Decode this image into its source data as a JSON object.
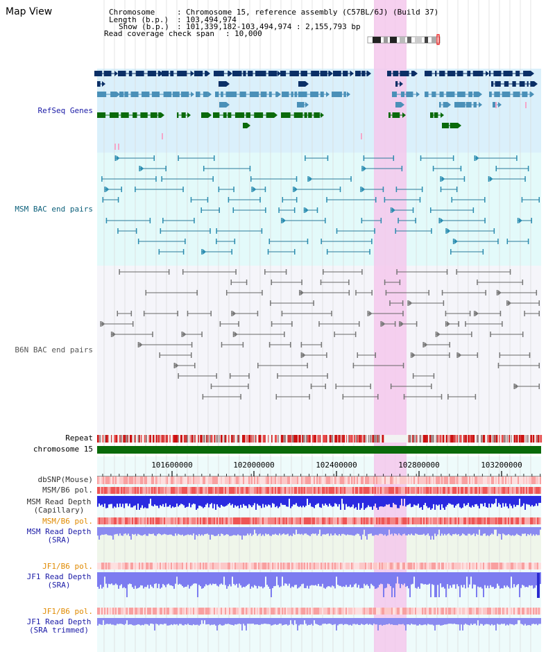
{
  "view": {
    "title": "Map View"
  },
  "header": {
    "chromosome_key": "Chromosome",
    "chromosome_val": "Chromosome 15, reference assembly (C57BL/6J) (Build 37)",
    "length_key": "Length (b.p.)",
    "length_val": "103,494,974",
    "show_key": "Show (b.p.)",
    "show_val": "101,339,182-103,494,974 : 2,155,793 bp",
    "span_key": "Read coverage check span",
    "span_val": "10,000"
  },
  "tracks": {
    "refseq": "RefSeq Genes",
    "msm_bac": "MSM BAC end pairs",
    "b6n_bac": "B6N BAC end pairs",
    "repeat": "Repeat",
    "chromosome": "chromosome 15",
    "dbsnp": "dbSNP(Mouse)",
    "msm_pol1": "MSM/B6 pol.",
    "msm_depth_cap_1": "MSM Read Depth",
    "msm_depth_cap_2": "(Capillary)",
    "msm_pol2": "MSM/B6 pol.",
    "msm_depth_sra_1": "MSM Read Depth",
    "msm_depth_sra_2": "(SRA)",
    "jf1_pol1": "JF1/B6 pol.",
    "jf1_depth_1": "JF1 Read Depth",
    "jf1_depth_2": "(SRA)",
    "jf1_pol2": "JF1/B6 pol.",
    "jf1_trim_1": "JF1 Read Depth",
    "jf1_trim_2": "(SRA trimmed)"
  },
  "axis": {
    "ticks": [
      "101600000",
      "102000000",
      "102400000",
      "102800000",
      "103200000"
    ],
    "range_start": 101339182,
    "range_end": 103494974
  },
  "colors": {
    "refseq_label": "#1a1aa6",
    "msm_label": "#0b5f7a",
    "b6n_label": "#555555",
    "pol_label": "#e08a00",
    "depth_label": "#1a1aa6",
    "highlight": "#f5c8ec",
    "chromosome_bar": "#0a6a0a"
  }
}
